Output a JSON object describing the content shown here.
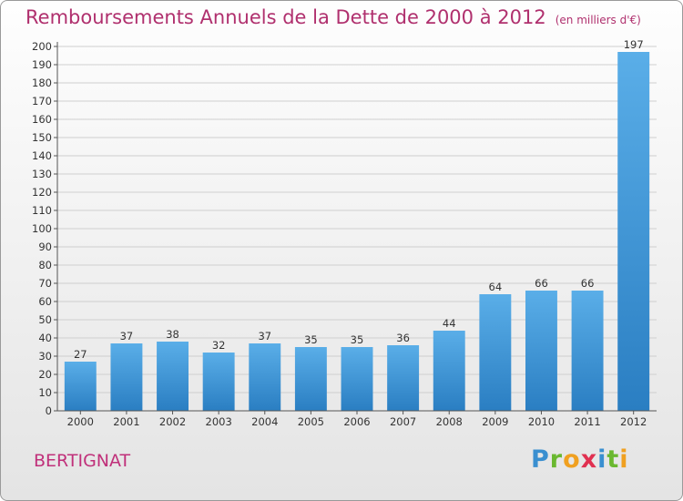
{
  "title": "Remboursements Annuels de la Dette de 2000 à 2012",
  "subtitle": "(en milliers d'€)",
  "commune": "BERTIGNAT",
  "logo": "Proxiti",
  "colors": {
    "title": "#b0306e",
    "bar_top": "#5aaee8",
    "bar_bottom": "#2a7ec2",
    "grid": "#cccccc"
  },
  "chart_data": {
    "type": "bar",
    "title": "Remboursements Annuels de la Dette de 2000 à 2012",
    "categories": [
      "2000",
      "2001",
      "2002",
      "2003",
      "2004",
      "2005",
      "2006",
      "2007",
      "2008",
      "2009",
      "2010",
      "2011",
      "2012"
    ],
    "values": [
      27,
      37,
      38,
      32,
      37,
      35,
      35,
      36,
      44,
      64,
      66,
      66,
      197
    ],
    "ylim": [
      0,
      200
    ],
    "yticks": [
      0,
      10,
      20,
      30,
      40,
      50,
      60,
      70,
      80,
      90,
      100,
      110,
      120,
      130,
      140,
      150,
      160,
      170,
      180,
      190,
      200
    ],
    "grid": true,
    "xlabel": "",
    "ylabel": ""
  }
}
